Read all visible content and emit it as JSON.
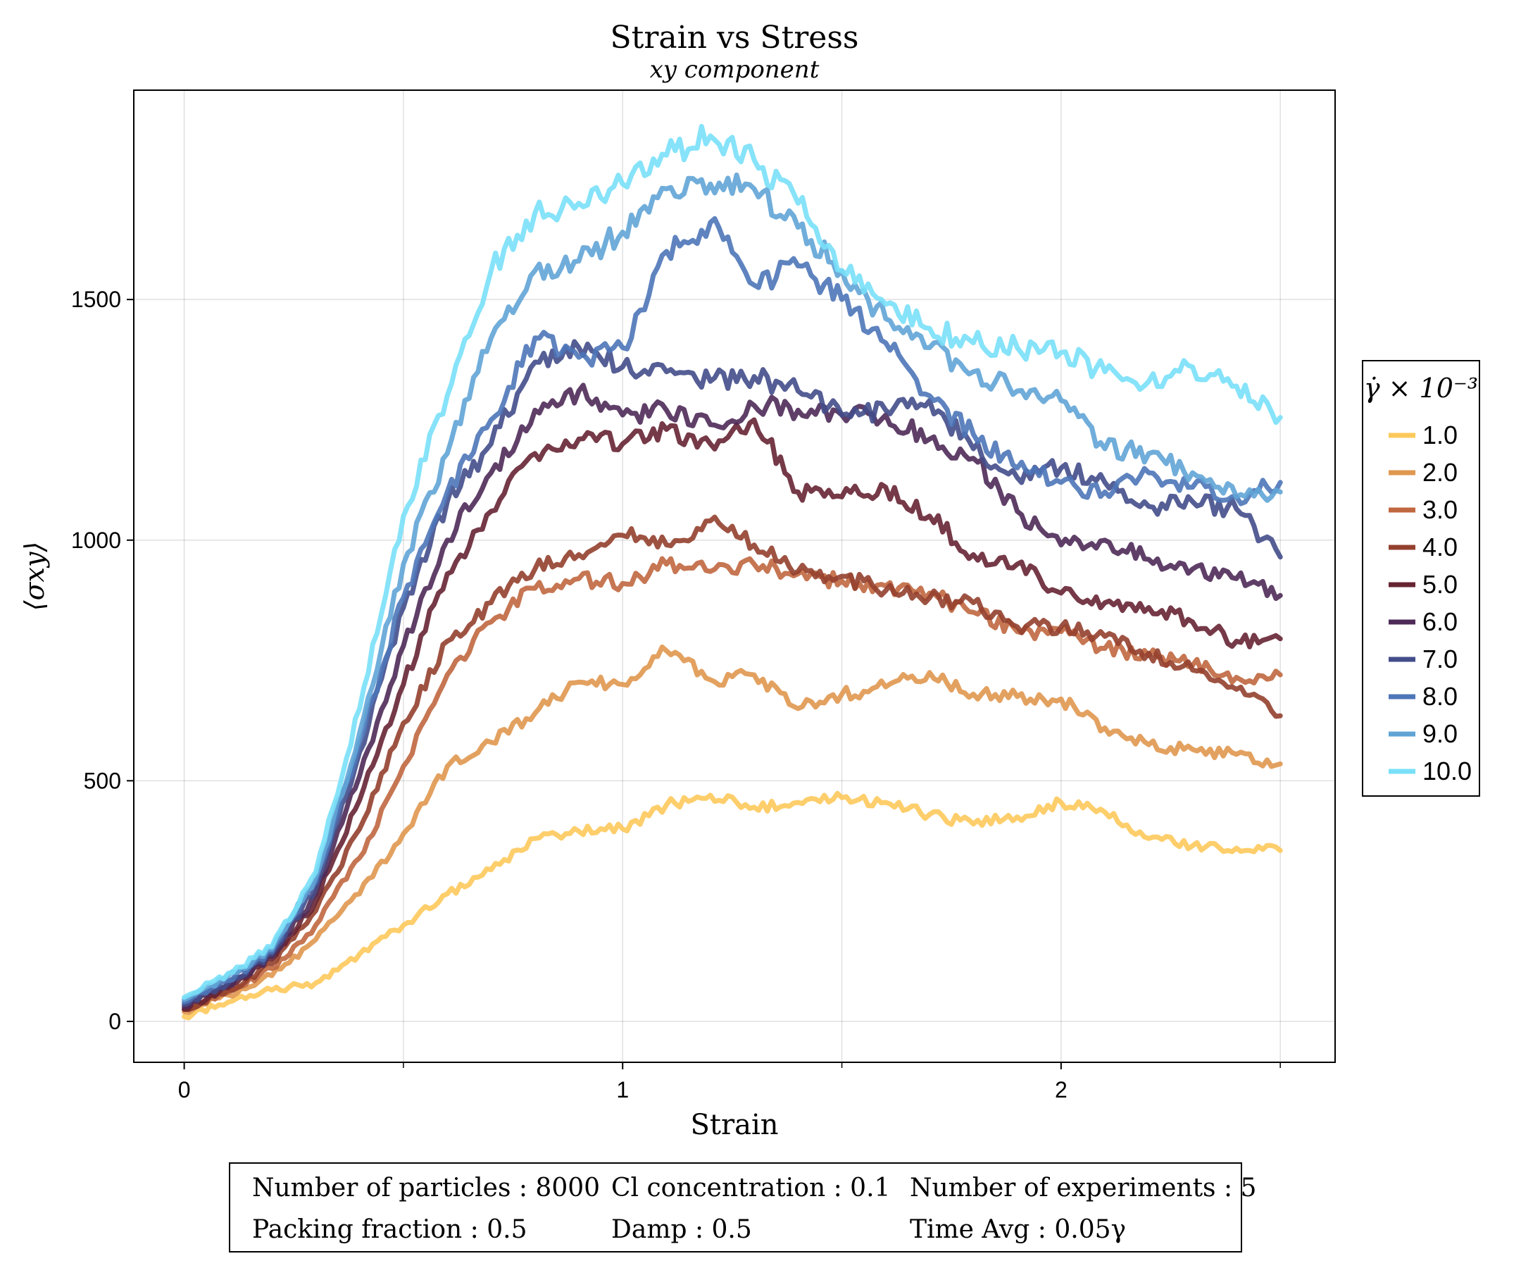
{
  "chart_data": {
    "type": "line",
    "title": "Strain vs Stress",
    "subtitle": "xy component",
    "xlabel": "Strain",
    "ylabel": "⟨σxy⟩",
    "xlim": [
      -0.115,
      2.625
    ],
    "ylim": [
      -85,
      1935
    ],
    "xticks": [
      0,
      1,
      2
    ],
    "xminorticks": [
      0.5,
      1.5,
      2.5
    ],
    "yticks": [
      0,
      500,
      1000,
      1500
    ],
    "grid": true,
    "legend": {
      "title": "γ̇ × 10⁻³",
      "position": "right"
    },
    "x": [
      0.0,
      0.1,
      0.2,
      0.3,
      0.4,
      0.5,
      0.6,
      0.7,
      0.8,
      0.9,
      1.0,
      1.1,
      1.2,
      1.3,
      1.4,
      1.5,
      1.6,
      1.7,
      1.8,
      1.9,
      2.0,
      2.1,
      2.2,
      2.3,
      2.4,
      2.5
    ],
    "series": [
      {
        "name": "1.0",
        "color": "#fdc95b",
        "values": [
          10,
          40,
          65,
          80,
          140,
          200,
          265,
          315,
          380,
          395,
          400,
          450,
          470,
          445,
          455,
          465,
          455,
          430,
          410,
          425,
          455,
          435,
          380,
          365,
          360,
          355
        ]
      },
      {
        "name": "2.0",
        "color": "#e0974f",
        "values": [
          20,
          55,
          95,
          170,
          265,
          390,
          530,
          580,
          640,
          705,
          700,
          770,
          710,
          720,
          650,
          680,
          695,
          725,
          680,
          675,
          670,
          610,
          575,
          565,
          555,
          535
        ]
      },
      {
        "name": "3.0",
        "color": "#c0673f",
        "values": [
          25,
          60,
          110,
          200,
          340,
          530,
          720,
          830,
          900,
          920,
          910,
          950,
          935,
          950,
          930,
          915,
          905,
          890,
          850,
          810,
          810,
          775,
          760,
          740,
          715,
          720
        ]
      },
      {
        "name": "4.0",
        "color": "#94402e",
        "values": [
          25,
          65,
          120,
          230,
          400,
          620,
          790,
          870,
          940,
          970,
          1010,
          990,
          1040,
          990,
          935,
          925,
          895,
          880,
          870,
          820,
          820,
          800,
          765,
          730,
          690,
          635
        ]
      },
      {
        "name": "5.0",
        "color": "#662433",
        "values": [
          25,
          70,
          130,
          250,
          460,
          700,
          930,
          1060,
          1180,
          1210,
          1200,
          1230,
          1200,
          1250,
          1100,
          1090,
          1110,
          1050,
          970,
          950,
          890,
          870,
          860,
          830,
          790,
          795
        ]
      },
      {
        "name": "6.0",
        "color": "#4e2a58",
        "values": [
          30,
          75,
          135,
          265,
          510,
          780,
          1000,
          1140,
          1270,
          1310,
          1260,
          1270,
          1240,
          1280,
          1270,
          1260,
          1260,
          1210,
          1170,
          1060,
          990,
          1000,
          960,
          940,
          920,
          885
        ]
      },
      {
        "name": "7.0",
        "color": "#434d8a",
        "values": [
          35,
          80,
          140,
          280,
          560,
          860,
          1080,
          1200,
          1370,
          1400,
          1360,
          1350,
          1330,
          1340,
          1310,
          1260,
          1270,
          1290,
          1190,
          1130,
          1150,
          1120,
          1070,
          1080,
          1065,
          965
        ]
      },
      {
        "name": "8.0",
        "color": "#4d76b8",
        "values": [
          40,
          85,
          145,
          290,
          580,
          880,
          1100,
          1250,
          1420,
          1380,
          1400,
          1600,
          1660,
          1530,
          1570,
          1500,
          1410,
          1300,
          1220,
          1150,
          1120,
          1100,
          1140,
          1110,
          1090,
          1120
        ]
      },
      {
        "name": "9.0",
        "color": "#60a4d6",
        "values": [
          45,
          95,
          150,
          300,
          600,
          950,
          1180,
          1420,
          1560,
          1580,
          1640,
          1730,
          1740,
          1730,
          1650,
          1560,
          1460,
          1400,
          1350,
          1310,
          1290,
          1190,
          1180,
          1140,
          1090,
          1100
        ]
      },
      {
        "name": "10.0",
        "color": "#79e0f8",
        "values": [
          50,
          100,
          155,
          310,
          650,
          1050,
          1300,
          1560,
          1680,
          1700,
          1740,
          1800,
          1840,
          1790,
          1700,
          1560,
          1490,
          1440,
          1410,
          1400,
          1390,
          1350,
          1330,
          1360,
          1320,
          1255
        ]
      }
    ]
  },
  "info_box": {
    "rows": [
      [
        "Number of particles : 8000",
        "Cl concentration : 0.1",
        "Number of experiments : 5"
      ],
      [
        "Packing fraction : 0.5",
        "Damp : 0.5",
        "Time Avg : 0.05γ"
      ]
    ]
  }
}
